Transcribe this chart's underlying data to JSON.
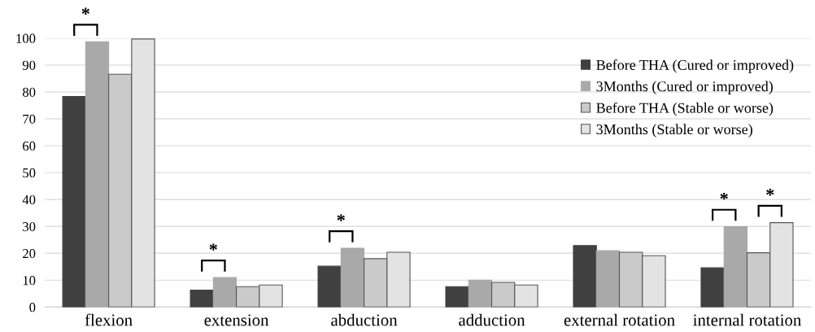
{
  "chart_data": {
    "type": "bar",
    "categories": [
      "flexion",
      "extension",
      "abduction",
      "adduction",
      "external rotation",
      "internal rotation"
    ],
    "series": [
      {
        "name": "Before THA (Cured or improved)",
        "color": "#404040",
        "values": [
          78.3,
          6.3,
          15.2,
          7.6,
          22.9,
          14.6
        ]
      },
      {
        "name": "3Months (Cured or improved)",
        "color": "#a9a9a9",
        "values": [
          98.7,
          11,
          21.9,
          10,
          21,
          29.9
        ]
      },
      {
        "name": "Before THA (Stable or worse)",
        "color": "#cacaca",
        "values": [
          86.6,
          7.6,
          18,
          9.2,
          20.4,
          20.2
        ]
      },
      {
        "name": "3Months (Stable or worse)",
        "color": "#e3e3e3",
        "values": [
          99.7,
          8.2,
          20.4,
          8.2,
          19.1,
          31.4
        ]
      }
    ],
    "ylim": [
      0,
      100
    ],
    "yticks": [
      0,
      10,
      20,
      30,
      40,
      50,
      60,
      70,
      80,
      90,
      100
    ],
    "grid": "y",
    "legend": "top right",
    "annotations": [
      {
        "text": "*",
        "x": "flexion",
        "y": 98.7
      },
      {
        "text": "*",
        "x": "extension",
        "y": 11
      },
      {
        "text": "*",
        "x": "abduction",
        "y": 21.9
      },
      {
        "text": "*",
        "x": "internal rotation",
        "y": 29.9
      },
      {
        "text": "*",
        "x": "internal rotation",
        "y": 31.4
      }
    ]
  }
}
